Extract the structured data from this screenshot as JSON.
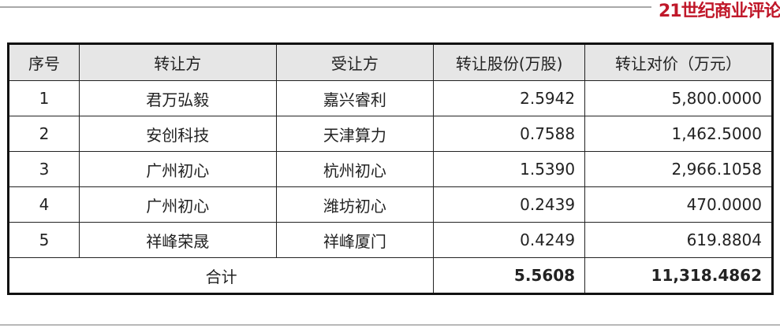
{
  "brand": {
    "logo_text": "21世纪商业评论",
    "color": "#c0182a"
  },
  "table": {
    "headers": [
      "序号",
      "转让方",
      "受让方",
      "转让股份(万股)",
      "转让对价（万元）"
    ],
    "rows": [
      [
        "1",
        "君万弘毅",
        "嘉兴睿利",
        "2.5942",
        "5,800.0000"
      ],
      [
        "2",
        "安创科技",
        "天津算力",
        "0.7588",
        "1,462.5000"
      ],
      [
        "3",
        "广州初心",
        "杭州初心",
        "1.5390",
        "2,966.1058"
      ],
      [
        "4",
        "广州初心",
        "潍坊初心",
        "0.2439",
        "470.0000"
      ],
      [
        "5",
        "祥峰荣晟",
        "祥峰厦门",
        "0.4249",
        "619.8804"
      ]
    ],
    "total": {
      "label": "合计",
      "shares": "5.5608",
      "price": "11,318.4862"
    }
  }
}
